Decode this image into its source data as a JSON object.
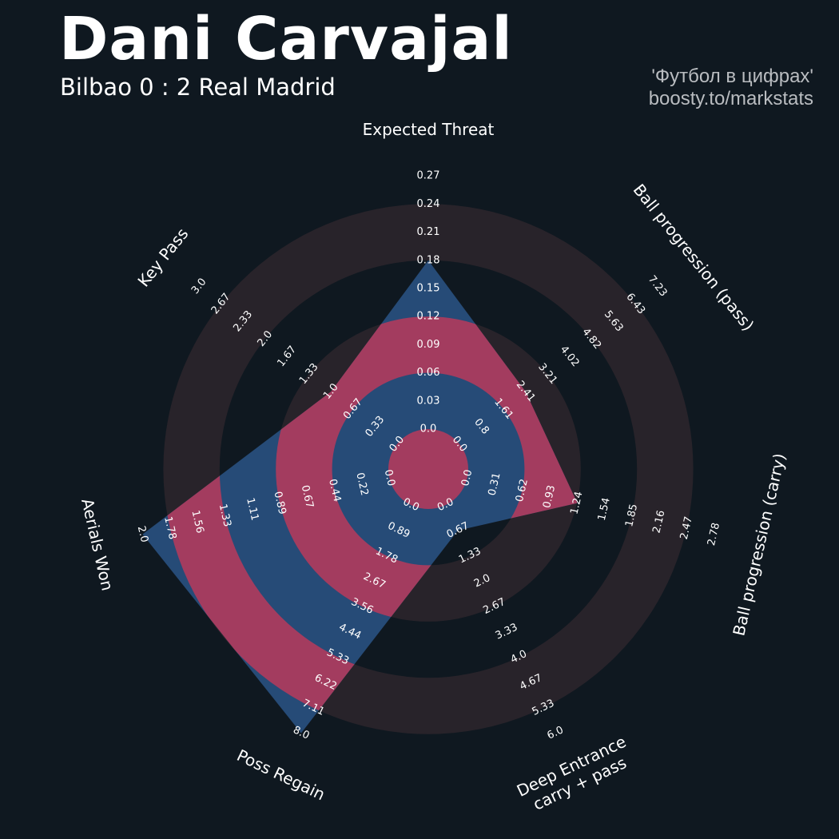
{
  "title": "Dani Carvajal",
  "subtitle": "Bilbao 0 : 2 Real Madrid",
  "credit": {
    "line1": "'Футбол в цифрах'",
    "line2": "boosty.to/markstats"
  },
  "colors": {
    "background": "#0f1820",
    "ring_dark": "#28232a",
    "inner_ring_on_polygon": "#a33c5f",
    "polygon_fill": "#264b77",
    "text": "#ffffff",
    "credit": "#b9bcc0"
  },
  "chart_data": {
    "type": "radar",
    "title": "Dani Carvajal",
    "subtitle": "Bilbao 0 : 2 Real Madrid",
    "parameters": [
      {
        "label": "Expected Threat",
        "min": 0.0,
        "max": 0.27,
        "value": 0.18,
        "ticks": [
          "0.0",
          "0.03",
          "0.06",
          "0.09",
          "0.12",
          "0.15",
          "0.18",
          "0.21",
          "0.24",
          "0.27"
        ]
      },
      {
        "label": "Ball progression (pass)",
        "min": 0.0,
        "max": 7.23,
        "value": 2.41,
        "ticks": [
          "0.0",
          "0.8",
          "1.61",
          "2.41",
          "3.21",
          "4.02",
          "4.82",
          "5.63",
          "6.43",
          "7.23"
        ]
      },
      {
        "label": "Ball progression (carry)",
        "min": 0.0,
        "max": 2.78,
        "value": 1.24,
        "ticks": [
          "0.0",
          "0.31",
          "0.62",
          "0.93",
          "1.24",
          "1.54",
          "1.85",
          "2.16",
          "2.47",
          "2.78"
        ]
      },
      {
        "label": "Deep Entrance\ncarry + pass",
        "min": 0.0,
        "max": 6.0,
        "value": 0.67,
        "ticks": [
          "0.0",
          "0.67",
          "1.33",
          "2.0",
          "2.67",
          "3.33",
          "4.0",
          "4.67",
          "5.33",
          "6.0"
        ]
      },
      {
        "label": "Poss Regain",
        "min": 0.0,
        "max": 8.0,
        "value": 8.0,
        "ticks": [
          "0.0",
          "0.89",
          "1.78",
          "2.67",
          "3.56",
          "4.44",
          "5.33",
          "6.22",
          "7.11",
          "8.0"
        ]
      },
      {
        "label": "Aerials Won",
        "min": 0.0,
        "max": 2.0,
        "value": 2.0,
        "ticks": [
          "0.0",
          "0.22",
          "0.44",
          "0.67",
          "0.89",
          "1.11",
          "1.33",
          "1.56",
          "1.78",
          "2.0"
        ]
      },
      {
        "label": "Key Pass",
        "min": 0.0,
        "max": 3.0,
        "value": 1.0,
        "ticks": [
          "0.0",
          "0.33",
          "0.67",
          "1.0",
          "1.33",
          "1.67",
          "2.0",
          "2.33",
          "2.67",
          "3.0"
        ]
      }
    ]
  }
}
